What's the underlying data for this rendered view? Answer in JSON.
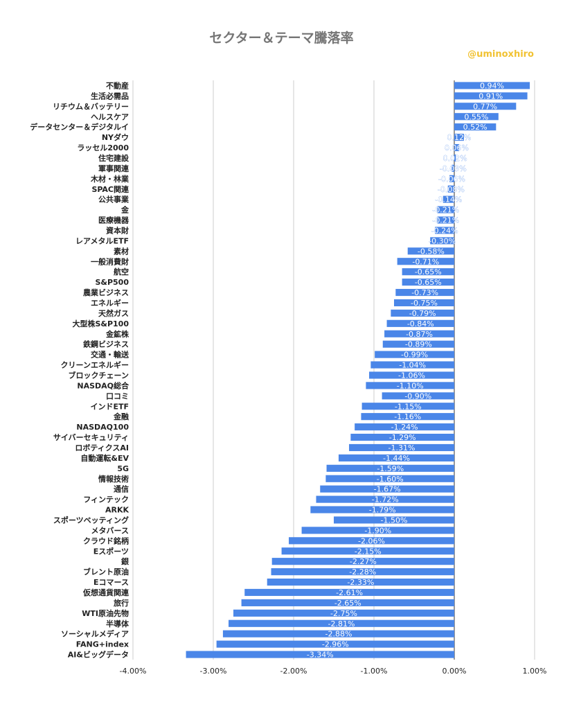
{
  "chart_data": {
    "type": "bar",
    "orientation": "horizontal",
    "title": "セクター＆テーマ騰落率",
    "xlabel": "",
    "ylabel": "",
    "xlim": [
      -0.04,
      0.01
    ],
    "x_ticks": [
      "-4.00%",
      "-3.00%",
      "-2.00%",
      "-1.00%",
      "0.00%",
      "1.00%"
    ],
    "grid": true,
    "legend": "none",
    "bar_color": "#4a86e8",
    "categories": [
      "不動産",
      "生活必需品",
      "リチウム＆バッテリー",
      "ヘルスケア",
      "データセンター＆デジタルイ",
      "NYダウ",
      "ラッセル2000",
      "住宅建設",
      "軍事関連",
      "木材・林業",
      "SPAC関連",
      "公共事業",
      "金",
      "医療機器",
      "資本財",
      "レアメタルETF",
      "素材",
      "一般消費財",
      "航空",
      "S&P500",
      "農業ビジネス",
      "エネルギー",
      "天然ガス",
      "大型株S&P100",
      "金鉱株",
      "鉄鋼ビジネス",
      "交通・輸送",
      "クリーンエネルギー",
      "ブロックチェーン",
      "NASDAQ総合",
      "口コミ",
      "インドETF",
      "金融",
      "NASDAQ100",
      "サイバーセキュリティ",
      "ロボティクスAI",
      "自動運転&EV",
      "5G",
      "情報技術",
      "通信",
      "フィンテック",
      "ARKK",
      "スポーツベッティング",
      "メタバース",
      "クラウド銘柄",
      "Eスポーツ",
      "銀",
      "ブレント原油",
      "Eコマース",
      "仮想通貨関連",
      "旅行",
      "WTI原油先物",
      "半導体",
      "ソーシャルメディア",
      "FANG+index",
      "AI&ビッグデータ"
    ],
    "values": [
      0.94,
      0.91,
      0.77,
      0.55,
      0.52,
      0.12,
      0.06,
      0.02,
      -0.03,
      -0.06,
      -0.08,
      -0.14,
      -0.21,
      -0.21,
      -0.24,
      -0.3,
      -0.58,
      -0.71,
      -0.65,
      -0.65,
      -0.73,
      -0.75,
      -0.79,
      -0.84,
      -0.87,
      -0.89,
      -0.99,
      -1.04,
      -1.06,
      -1.1,
      -0.9,
      -1.15,
      -1.16,
      -1.24,
      -1.29,
      -1.31,
      -1.44,
      -1.59,
      -1.6,
      -1.67,
      -1.72,
      -1.79,
      -1.5,
      -1.9,
      -2.06,
      -2.15,
      -2.27,
      -2.28,
      -2.33,
      -2.61,
      -2.65,
      -2.75,
      -2.81,
      -2.88,
      -2.96,
      -3.34
    ],
    "data_labels": [
      "0.94%",
      "0.91%",
      "0.77%",
      "0.55%",
      "0.52%",
      "0.12%",
      "0.06%",
      "0.02%",
      "-0.03%",
      "-0.06%",
      "-0.08%",
      "-0.14%",
      "-0.21%",
      "-0.21%",
      "-0.24%",
      "-0.30%",
      "-0.58%",
      "-0.71%",
      "-0.65%",
      "-0.65%",
      "-0.73%",
      "-0.75%",
      "-0.79%",
      "-0.84%",
      "-0.87%",
      "-0.89%",
      "-0.99%",
      "-1.04%",
      "-1.06%",
      "-1.10%",
      "-0.90%",
      "-1.15%",
      "-1.16%",
      "-1.24%",
      "-1.29%",
      "-1.31%",
      "-1.44%",
      "-1.59%",
      "-1.60%",
      "-1.67%",
      "-1.72%",
      "-1.79%",
      "-1.50%",
      "-1.90%",
      "-2.06%",
      "-2.15%",
      "-2.27%",
      "-2.28%",
      "-2.33%",
      "-2.61%",
      "-2.65%",
      "-2.75%",
      "-2.81%",
      "-2.88%",
      "-2.96%",
      "-3.34%"
    ]
  },
  "watermark": "@uminoxhiro"
}
